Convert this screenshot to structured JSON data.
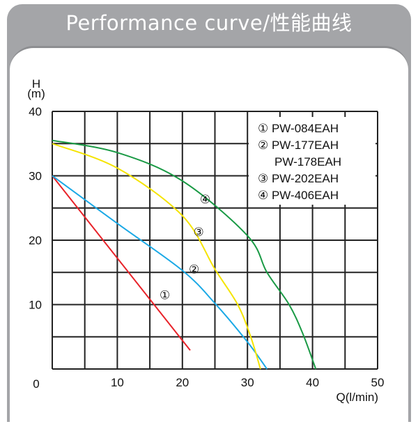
{
  "title": "Performance curve/性能曲线",
  "chart_data": {
    "type": "line",
    "title": "Performance curve/性能曲线",
    "xlabel": "Q(l/min)",
    "ylabel": "H\n(m)",
    "ylabel_line1": "H",
    "ylabel_line2": "(m)",
    "xlim": [
      0,
      50
    ],
    "ylim": [
      0,
      40
    ],
    "xticks": [
      10,
      20,
      30,
      40,
      50
    ],
    "yticks": [
      0,
      10,
      20,
      30,
      40
    ],
    "grid": true,
    "legend_position": "top-right",
    "legend": [
      "① PW-084EAH",
      "② PW-177EAH",
      "PW-178EAH",
      "③ PW-202EAH",
      "④ PW-406EAH"
    ],
    "series": [
      {
        "name": "①",
        "color": "#e8232a",
        "label_at": [
          17.3,
          11.5
        ],
        "x": [
          0,
          21.2
        ],
        "y": [
          30,
          2.9
        ]
      },
      {
        "name": "②",
        "color": "#1ba9e6",
        "label_at": [
          21.8,
          15.5
        ],
        "x": [
          0,
          10,
          20,
          25,
          30,
          33
        ],
        "y": [
          30,
          22.6,
          15.3,
          10.2,
          4.2,
          0
        ]
      },
      {
        "name": "③",
        "color": "#f5e400",
        "label_at": [
          22.5,
          21.3
        ],
        "x": [
          0,
          10,
          20,
          25,
          28.5,
          30.5,
          32
        ],
        "y": [
          35,
          31.2,
          23.8,
          15.5,
          10,
          5,
          0
        ]
      },
      {
        "name": "④",
        "color": "#1a9a45",
        "label_at": [
          23.5,
          26.4
        ],
        "x": [
          0,
          10,
          20,
          30,
          33,
          36.4,
          38.5,
          40.5
        ],
        "y": [
          35.5,
          33.6,
          29.2,
          20.7,
          15,
          10,
          5.5,
          0
        ]
      }
    ]
  }
}
